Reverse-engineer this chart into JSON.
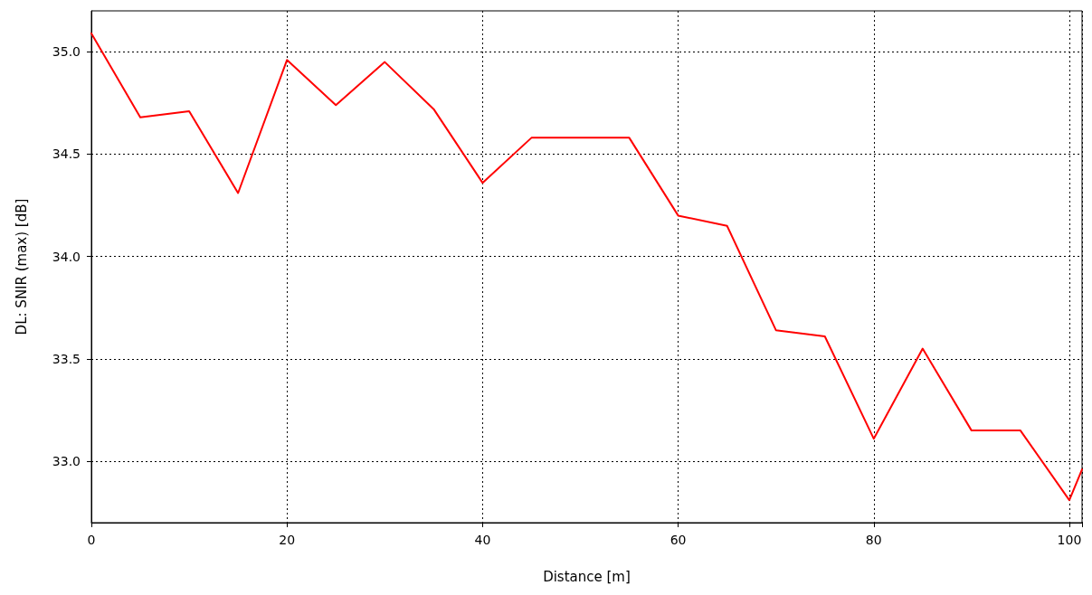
{
  "chart_data": {
    "type": "line",
    "xlabel": "Distance [m]",
    "ylabel": "DL: SNIR (max) [dB]",
    "x": [
      0,
      5,
      10,
      15,
      20,
      25,
      30,
      35,
      40,
      45,
      50,
      55,
      60,
      65,
      70,
      75,
      80,
      85,
      90,
      95,
      100,
      101.3
    ],
    "series": [
      {
        "color": "#ff0000",
        "values": [
          35.09,
          34.68,
          34.71,
          34.31,
          34.96,
          34.74,
          34.95,
          34.72,
          34.36,
          34.58,
          34.58,
          34.58,
          34.2,
          34.15,
          33.64,
          33.61,
          33.11,
          33.55,
          33.15,
          33.15,
          32.81,
          32.96
        ]
      }
    ],
    "xlim": [
      0,
      101.3
    ],
    "xticks": [
      0,
      20,
      40,
      60,
      80,
      100
    ],
    "ylim": [
      32.7,
      35.2
    ],
    "yticks": [
      {
        "value": 33,
        "label": "33.0"
      },
      {
        "value": 33.5,
        "label": "33.5"
      },
      {
        "value": 34,
        "label": "34.0"
      },
      {
        "value": 34.5,
        "label": "34.5"
      },
      {
        "value": 35,
        "label": "35.0"
      }
    ],
    "grid": true,
    "marker": "none",
    "line_style": "solid"
  }
}
